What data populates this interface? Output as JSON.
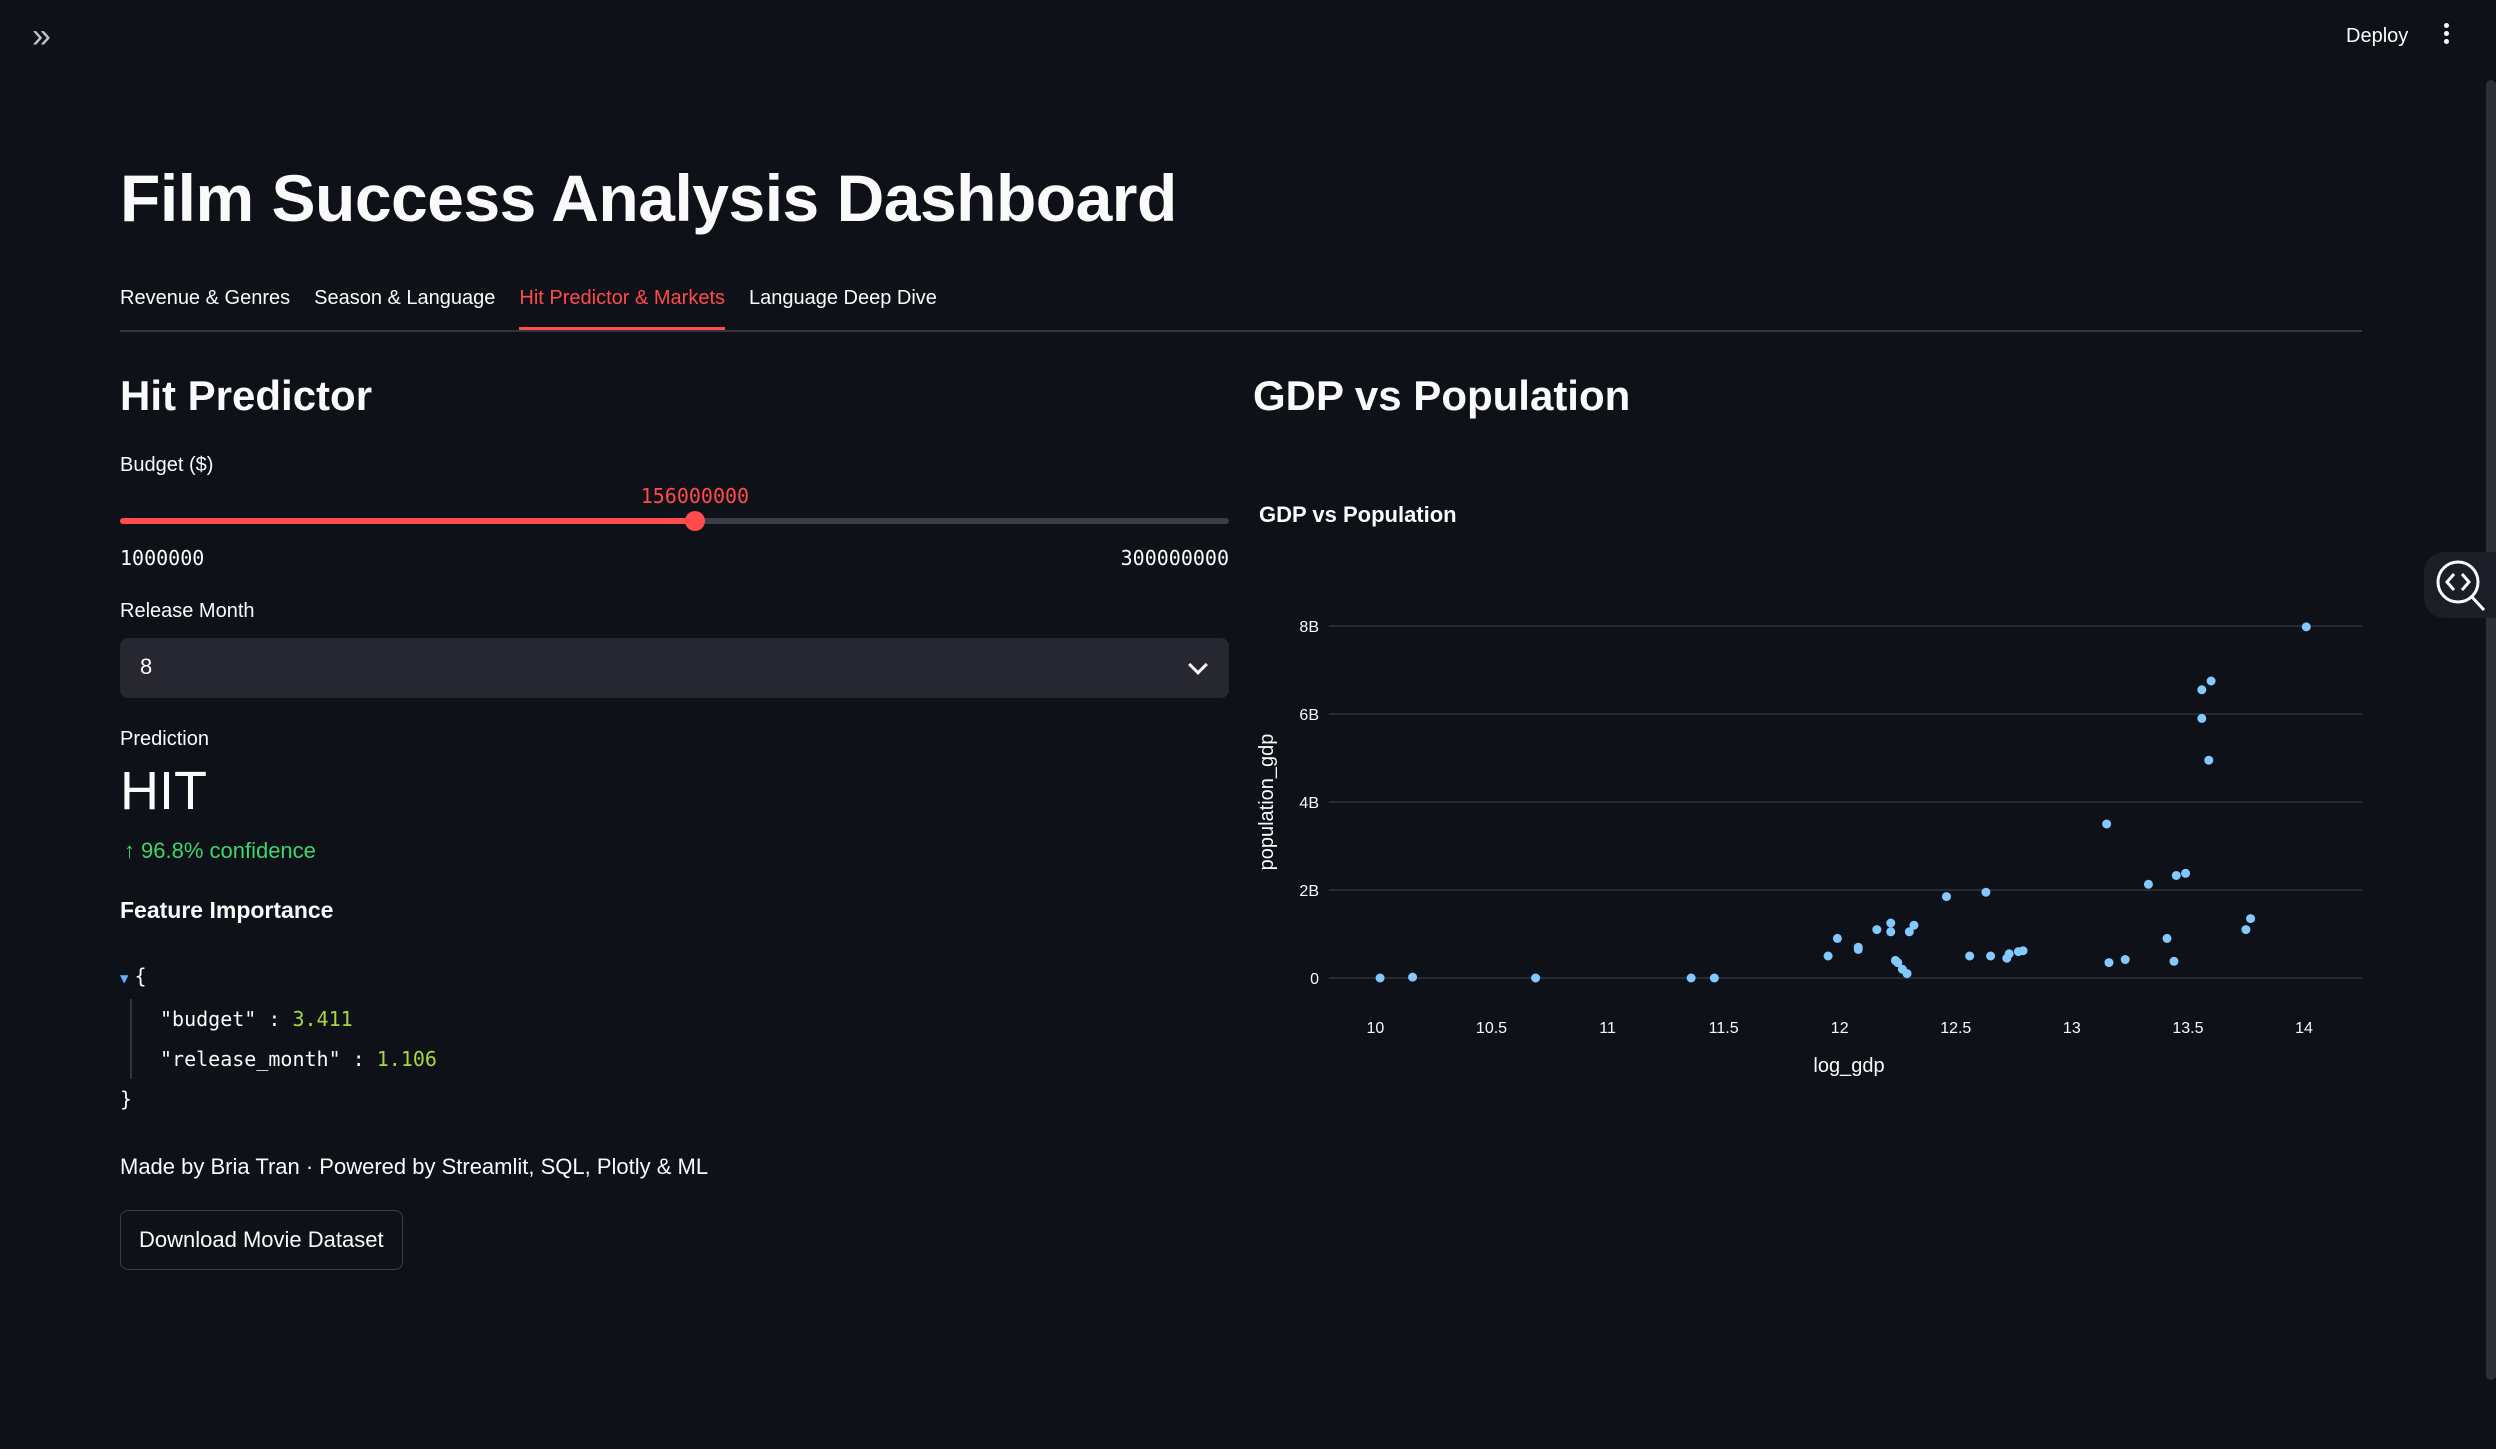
{
  "header": {
    "deploy_label": "Deploy"
  },
  "page": {
    "title": "Film Success Analysis Dashboard"
  },
  "tabs": [
    {
      "label": "Revenue & Genres"
    },
    {
      "label": "Season & Language"
    },
    {
      "label": "Hit Predictor & Markets"
    },
    {
      "label": "Language Deep Dive"
    }
  ],
  "predictor": {
    "heading": "Hit Predictor",
    "budget": {
      "label": "Budget ($)",
      "value": 156000000,
      "value_text": "156000000",
      "min_text": "1000000",
      "max_text": "300000000",
      "min": 1000000,
      "max": 300000000
    },
    "release_month": {
      "label": "Release Month",
      "value": "8"
    },
    "prediction": {
      "label": "Prediction",
      "value": "HIT",
      "delta": "96.8% confidence"
    },
    "feature_importance": {
      "heading": "Feature Importance",
      "open_brace": "{",
      "close_brace": "}",
      "rows": [
        {
          "key": "\"budget\"",
          "sep": ":",
          "value": "3.411"
        },
        {
          "key": "\"release_month\"",
          "sep": ":",
          "value": "1.106"
        }
      ]
    },
    "footer": "Made by Bria Tran · Powered by Streamlit, SQL, Plotly & ML",
    "download_label": "Download Movie Dataset"
  },
  "markets": {
    "heading": "GDP vs Population"
  },
  "chart_data": {
    "type": "scatter",
    "title": "GDP vs Population",
    "xlabel": "log_gdp",
    "ylabel": "population_gdp",
    "xlim": [
      9.8,
      14.25
    ],
    "ylim": [
      0,
      8000000000
    ],
    "xticks": [
      10,
      10.5,
      11,
      11.5,
      12,
      12.5,
      13,
      13.5,
      14
    ],
    "xtick_labels": [
      "10",
      "10.5",
      "11",
      "11.5",
      "12",
      "12.5",
      "13",
      "13.5",
      "14"
    ],
    "yticks": [
      0,
      2000000000,
      4000000000,
      6000000000,
      8000000000
    ],
    "ytick_labels": [
      "0",
      "2B",
      "4B",
      "6B",
      "8B"
    ],
    "grid": "horizontal",
    "marker_color": "#83c9ff",
    "points": [
      [
        10.02,
        0
      ],
      [
        10.16,
        20000000
      ],
      [
        10.69,
        0
      ],
      [
        11.36,
        0
      ],
      [
        11.46,
        0
      ],
      [
        11.95,
        500000000
      ],
      [
        11.99,
        900000000
      ],
      [
        12.08,
        650000000
      ],
      [
        12.08,
        700000000
      ],
      [
        12.16,
        1100000000
      ],
      [
        12.22,
        1050000000
      ],
      [
        12.22,
        1250000000
      ],
      [
        12.24,
        400000000
      ],
      [
        12.25,
        350000000
      ],
      [
        12.27,
        200000000
      ],
      [
        12.29,
        100000000
      ],
      [
        12.3,
        1050000000
      ],
      [
        12.32,
        1200000000
      ],
      [
        12.46,
        1850000000
      ],
      [
        12.56,
        500000000
      ],
      [
        12.63,
        1950000000
      ],
      [
        12.65,
        500000000
      ],
      [
        12.72,
        450000000
      ],
      [
        12.73,
        550000000
      ],
      [
        12.77,
        600000000
      ],
      [
        12.79,
        620000000
      ],
      [
        13.15,
        3500000000
      ],
      [
        13.16,
        350000000
      ],
      [
        13.23,
        420000000
      ],
      [
        13.33,
        2130000000
      ],
      [
        13.41,
        900000000
      ],
      [
        13.44,
        380000000
      ],
      [
        13.45,
        2330000000
      ],
      [
        13.49,
        2380000000
      ],
      [
        13.56,
        5900000000
      ],
      [
        13.56,
        6550000000
      ],
      [
        13.59,
        4950000000
      ],
      [
        13.6,
        6750000000
      ],
      [
        13.75,
        1100000000
      ],
      [
        13.77,
        1350000000
      ],
      [
        14.01,
        7980000000
      ]
    ]
  }
}
